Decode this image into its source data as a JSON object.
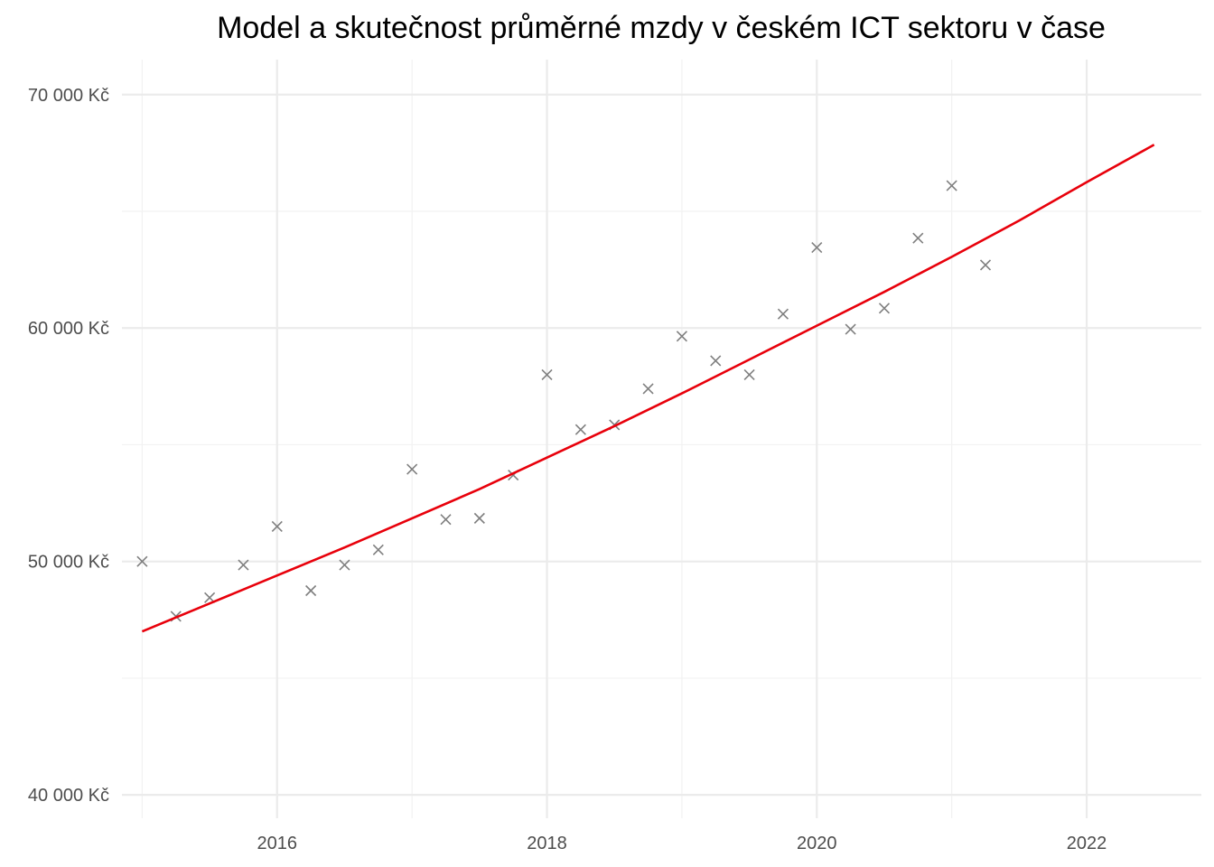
{
  "chart_data": {
    "type": "scatter",
    "title": "Model a skutečnost průměrné mzdy v českém ICT sektoru v čase",
    "xlabel": "",
    "ylabel": "",
    "xlim": [
      2014.85,
      2022.85
    ],
    "ylim": [
      39000,
      71500
    ],
    "x_ticks": [
      2016,
      2018,
      2020,
      2022
    ],
    "x_tick_labels": [
      "2016",
      "2018",
      "2020",
      "2022"
    ],
    "x_minor_ticks": [
      2015,
      2017,
      2019,
      2021
    ],
    "y_ticks": [
      40000,
      50000,
      60000,
      70000
    ],
    "y_tick_labels": [
      "40 000 Kč",
      "50 000 Kč",
      "60 000 Kč",
      "70 000 Kč"
    ],
    "y_minor_ticks": [
      45000,
      55000,
      65000
    ],
    "grid": true,
    "series": [
      {
        "kind": "points",
        "marker": "x",
        "color": "#7f7f7f",
        "x": [
          2015.0,
          2015.25,
          2015.5,
          2015.75,
          2016.0,
          2016.25,
          2016.5,
          2016.75,
          2017.0,
          2017.25,
          2017.5,
          2017.75,
          2018.0,
          2018.25,
          2018.5,
          2018.75,
          2019.0,
          2019.25,
          2019.5,
          2019.75,
          2020.0,
          2020.25,
          2020.5,
          2020.75,
          2021.0,
          2021.25
        ],
        "y": [
          50000,
          47650,
          48450,
          49850,
          51500,
          48750,
          49850,
          50500,
          53950,
          51800,
          51850,
          53700,
          58000,
          55650,
          55850,
          57400,
          59650,
          58600,
          58000,
          60600,
          63450,
          59950,
          60850,
          63850,
          66100,
          62700
        ]
      },
      {
        "kind": "line",
        "color": "#e8000b",
        "x": [
          2015.0,
          2015.5,
          2016.0,
          2016.5,
          2017.0,
          2017.5,
          2018.0,
          2018.5,
          2019.0,
          2019.5,
          2020.0,
          2020.5,
          2021.0,
          2021.5,
          2022.0,
          2022.5
        ],
        "y": [
          47000,
          48200,
          49400,
          50600,
          51850,
          53100,
          54450,
          55800,
          57200,
          58650,
          60100,
          61550,
          63050,
          64600,
          66250,
          67850
        ]
      }
    ]
  }
}
